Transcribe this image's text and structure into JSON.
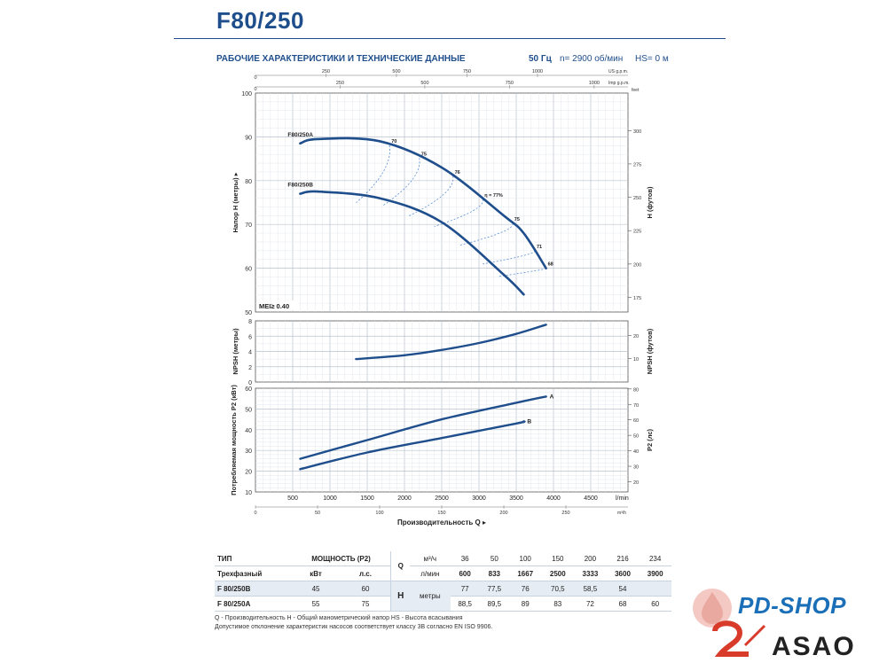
{
  "header": {
    "title": "F80/250",
    "section": "РАБОЧИЕ ХАРАКТЕРИСТИКИ И ТЕХНИЧЕСКИЕ ДАННЫЕ",
    "freq": "50 Гц",
    "speed": "n= 2900 об/мин",
    "hs": "HS= 0 м"
  },
  "chart_data": [
    {
      "type": "line",
      "name_label": "head",
      "ylabel": "Напор H (метры)",
      "ylabel_right": "H (футов)",
      "ylim": [
        50,
        100
      ],
      "xlim": [
        0,
        5000
      ],
      "x_unit": "l/min",
      "ytick_left": [
        50,
        60,
        70,
        80,
        90,
        100
      ],
      "ytick_right": [
        175,
        200,
        225,
        250,
        275,
        300,
        "feet"
      ],
      "top_axis_usgpm": [
        250,
        500,
        750,
        1000,
        "US g.p.m."
      ],
      "top_axis_impgpm": [
        250,
        500,
        750,
        1000,
        "Imp g.p.m."
      ],
      "series": [
        {
          "name": "F80/250A",
          "x": [
            600,
            833,
            1667,
            2500,
            3333,
            3600,
            3900
          ],
          "y": [
            88.5,
            89.5,
            89,
            83,
            72,
            68,
            60
          ]
        },
        {
          "name": "F80/250B",
          "x": [
            600,
            833,
            1667,
            2500,
            3333,
            3600
          ],
          "y": [
            77,
            77.5,
            76,
            70.5,
            58.5,
            54
          ]
        }
      ],
      "efficiency_labels": [
        "70",
        "75",
        "76",
        "η = 77%",
        "75",
        "71",
        "68"
      ],
      "annotation": "MEI≥ 0.40"
    },
    {
      "type": "line",
      "name_label": "npsh",
      "ylabel": "NPSH (метры)",
      "ylabel_right": "NPSH (футов)",
      "ylim": [
        0,
        8
      ],
      "ytick_left": [
        0,
        2,
        4,
        6,
        8
      ],
      "ytick_right": [
        10,
        20
      ],
      "series": [
        {
          "name": "",
          "x": [
            1350,
            2000,
            2500,
            3000,
            3500,
            3900
          ],
          "y": [
            3.0,
            3.5,
            4.2,
            5.1,
            6.3,
            7.5
          ]
        }
      ]
    },
    {
      "type": "line",
      "name_label": "power",
      "ylabel": "Потребляемая мощность P2 (кВт)",
      "ylabel_right": "P2 (лс)",
      "ylim": [
        10,
        60
      ],
      "xlim": [
        0,
        5000
      ],
      "ytick_left": [
        10,
        20,
        30,
        40,
        50,
        60
      ],
      "ytick_right": [
        20,
        30,
        40,
        50,
        60,
        70,
        80
      ],
      "xticks": [
        500,
        1000,
        1500,
        2000,
        2500,
        3000,
        3500,
        4000,
        4500
      ],
      "x_unit_label": "l/min",
      "x_m3h_ticks": [
        0,
        50,
        100,
        150,
        200,
        250,
        "m³/h"
      ],
      "xlabel": "Производительность Q",
      "series": [
        {
          "name": "A",
          "x": [
            600,
            1500,
            2500,
            3500,
            3900
          ],
          "y": [
            26,
            35,
            45,
            53,
            56
          ]
        },
        {
          "name": "B",
          "x": [
            600,
            1500,
            2500,
            3500,
            3600
          ],
          "y": [
            21,
            29,
            36,
            43,
            44
          ]
        }
      ]
    }
  ],
  "table": {
    "col_type": "ТИП",
    "col_power": "МОЩНОСТЬ (P2)",
    "q_symbol": "Q",
    "q_unit_m3h": "м³/ч",
    "q_unit_lmin": "л/мин",
    "three_phase": "Трехфазный",
    "kw": "кВт",
    "hp": "л.с.",
    "h_symbol": "H",
    "h_unit": "метры",
    "q_m3h": [
      "36",
      "50",
      "100",
      "150",
      "200",
      "216",
      "234"
    ],
    "q_lmin": [
      "600",
      "833",
      "1667",
      "2500",
      "3333",
      "3600",
      "3900"
    ],
    "rows": [
      {
        "model": "F 80/250B",
        "kw": "45",
        "hp": "60",
        "h": [
          "77",
          "77,5",
          "76",
          "70,5",
          "58,5",
          "54",
          ""
        ]
      },
      {
        "model": "F 80/250A",
        "kw": "55",
        "hp": "75",
        "h": [
          "88,5",
          "89,5",
          "89",
          "83",
          "72",
          "68",
          "60"
        ]
      }
    ]
  },
  "footnote": {
    "line1": "Q - Производительность   H - Общий манометрический напор   HS - Высота всасывания",
    "line2": "Допустимое отклонение характеристик насосов соответствует классу 3B согласно EN ISO 9906."
  },
  "watermark": {
    "brand1": "PD-SHOP",
    "brand2": "ASAO"
  },
  "colors": {
    "accent": "#1f4e8c",
    "curve": "#1f4e8c",
    "efficiency": "#5b8fd6",
    "grid": "#c9d2dd"
  }
}
